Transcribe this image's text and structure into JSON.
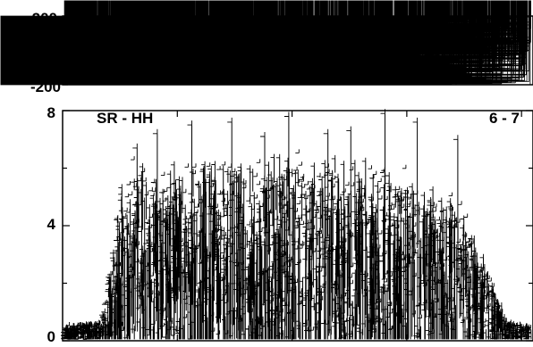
{
  "chart_data": [
    {
      "type": "scatter",
      "panel": "top",
      "title": "",
      "xlabel": "",
      "ylabel": "",
      "ylim": [
        -200,
        200
      ],
      "yticks": [
        {
          "value": 200,
          "label": "200"
        },
        {
          "value": -200,
          "label": "-200"
        }
      ],
      "grid": false,
      "marker": "plus",
      "series": [
        {
          "description_of_distribution": "dense noise uniformly spanning approximately -200 to 200 across the whole x range",
          "y_range": [
            -200,
            200
          ]
        }
      ]
    },
    {
      "type": "scatter",
      "panel": "bottom",
      "title": "",
      "labels": {
        "left": "SR - HH",
        "right": "6 - 7"
      },
      "xlabel": "",
      "ylabel": "",
      "ylim": [
        0,
        8
      ],
      "yticks": [
        {
          "value": 8,
          "label": "8"
        },
        {
          "value": 4,
          "label": "4"
        },
        {
          "value": 0,
          "label": "0"
        }
      ],
      "grid": false,
      "marker": "plus",
      "envelope": {
        "note": "approximate upper envelope of the dense point cloud, x as fraction of axis width",
        "x": [
          0.0,
          0.08,
          0.12,
          0.16,
          0.2,
          0.3,
          0.4,
          0.5,
          0.6,
          0.7,
          0.8,
          0.86,
          0.9,
          0.95,
          1.0
        ],
        "y_max": [
          0.5,
          0.6,
          4.8,
          6.3,
          5.6,
          5.8,
          6.0,
          6.1,
          6.0,
          5.8,
          5.0,
          4.2,
          2.8,
          0.6,
          0.5
        ]
      },
      "outlier_peaks_y": [
        6.7,
        7.2,
        7.5,
        7.6,
        7.1,
        7.8,
        7.2,
        7.3,
        7.9,
        7.6,
        7.0
      ]
    }
  ]
}
